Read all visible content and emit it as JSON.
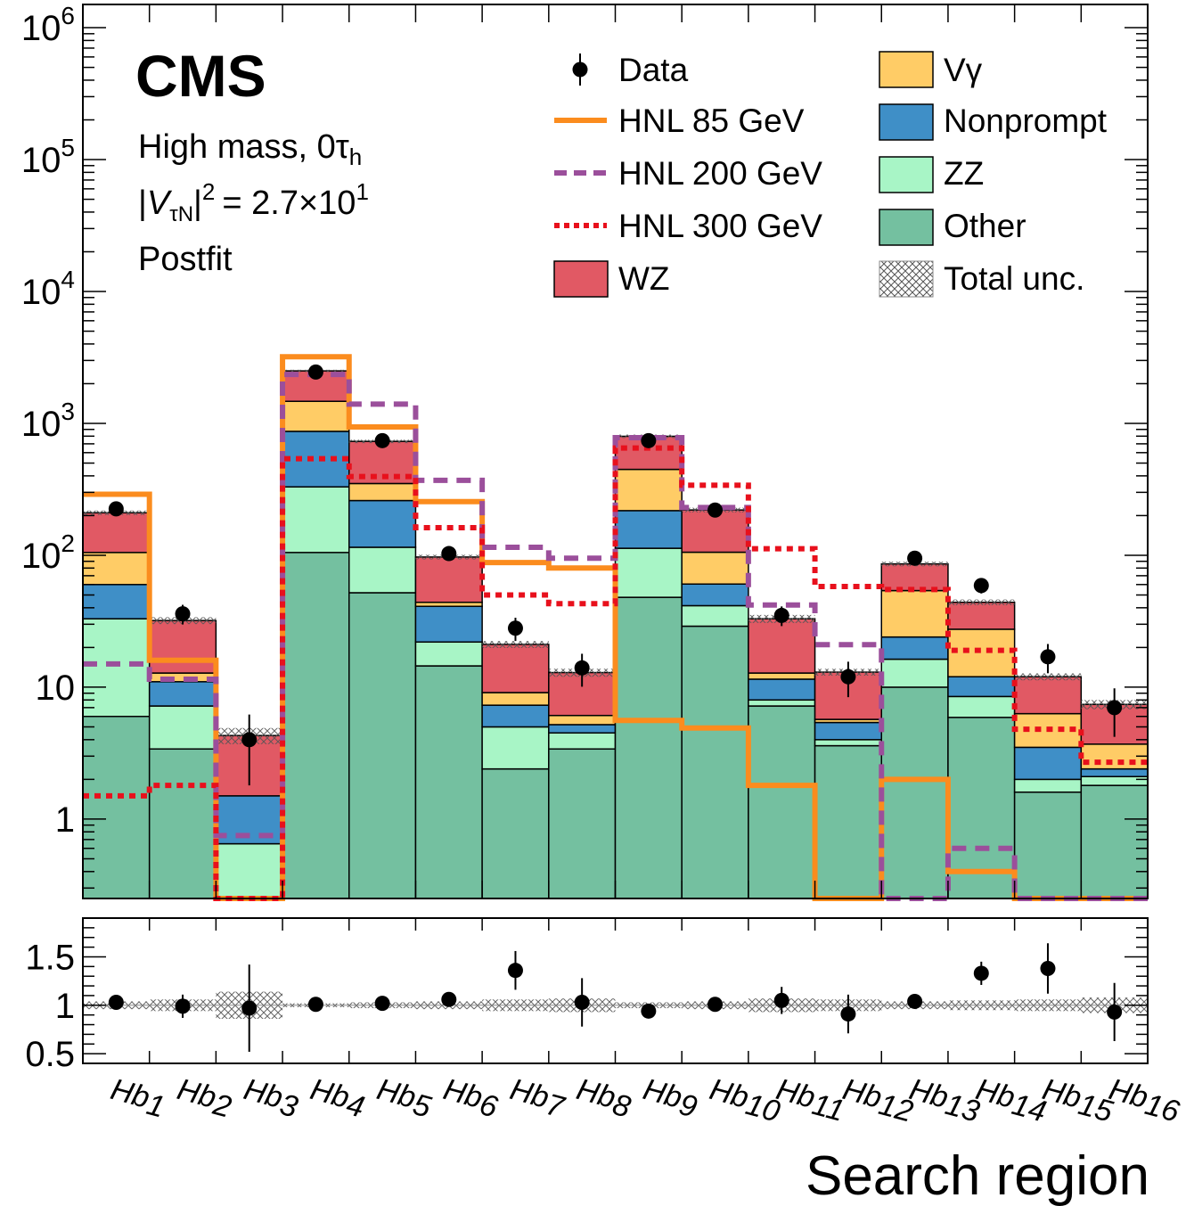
{
  "experiment": "CMS",
  "info_lines": [
    "High mass, 0τ",
    "|V",
    "|² = 2.7×10",
    "Postfit"
  ],
  "info": {
    "line1_main": "High mass, 0τ",
    "line1_sub": "h",
    "line2_v": "V",
    "line2_sub": "τN",
    "line2_rest": "= 2.7×10",
    "line2_exp": "1",
    "line2_sq": "2",
    "line3": "Postfit"
  },
  "legend": {
    "data": "Data",
    "hnl85": "HNL 85 GeV",
    "hnl200": "HNL 200 GeV",
    "hnl300": "HNL 300 GeV",
    "wz": "WZ",
    "vg": "Vγ",
    "nonprompt": "Nonprompt",
    "zz": "ZZ",
    "other": "Other",
    "unc": "Total unc."
  },
  "colors": {
    "wz": "#e15964",
    "vg": "#ffcc66",
    "nonprompt": "#3f8fc7",
    "zz": "#a8f5c6",
    "other": "#74c0a0",
    "hnl85": "#fb8c1e",
    "hnl200": "#9b4f9b",
    "hnl300": "#e8101c"
  },
  "xlabel": "Search region",
  "chart_data": {
    "type": "bar",
    "stacked": true,
    "yscale": "log",
    "ylim": [
      0.25,
      1500000
    ],
    "ratio_ylim": [
      0.4,
      1.9
    ],
    "categories": [
      "Hb1",
      "Hb2",
      "Hb3",
      "Hb4",
      "Hb5",
      "Hb6",
      "Hb7",
      "Hb8",
      "Hb9",
      "Hb10",
      "Hb11",
      "Hb12",
      "Hb13",
      "Hb14",
      "Hb15",
      "Hb16"
    ],
    "yticks": [
      "1",
      "10",
      "10²",
      "10³",
      "10⁴",
      "10⁵",
      "10⁶"
    ],
    "ratio_yticks": [
      "0.5",
      "1",
      "1.5"
    ],
    "stack_series": [
      {
        "name": "Other",
        "key": "other",
        "values": [
          6,
          3.4,
          0,
          105,
          52,
          14.5,
          2.4,
          3.4,
          48,
          29,
          7.2,
          3.6,
          10,
          5.9,
          1.6,
          1.8
        ]
      },
      {
        "name": "ZZ",
        "key": "zz",
        "values": [
          27,
          3.8,
          0.65,
          225,
          63,
          7.5,
          2.6,
          1.1,
          65,
          12.5,
          0.8,
          0.4,
          6.3,
          2.6,
          0.4,
          0.3
        ]
      },
      {
        "name": "Nonprompt",
        "key": "nonprompt",
        "values": [
          27,
          3.8,
          0.85,
          540,
          145,
          19,
          2.3,
          0.7,
          105,
          19,
          3.5,
          1.4,
          7.7,
          3.5,
          1.5,
          0.3
        ]
      },
      {
        "name": "Vγ",
        "key": "vg",
        "values": [
          45,
          1.8,
          0,
          600,
          90,
          3,
          1.8,
          0.9,
          230,
          45,
          1.3,
          0.3,
          30,
          15.5,
          2.8,
          1.3
        ]
      },
      {
        "name": "WZ",
        "key": "wz",
        "values": [
          105,
          19.2,
          2.8,
          1030,
          380,
          53,
          12,
          6.8,
          350,
          115,
          20.2,
          7.3,
          32,
          16.5,
          5.7,
          3.7
        ]
      }
    ],
    "data_points": [
      225,
      36,
      4,
      2450,
      740,
      103,
      28,
      14,
      740,
      220,
      35,
      12,
      95,
      59,
      17,
      7
    ],
    "data_err_rel": [
      0.07,
      0.17,
      0.55,
      0.02,
      0.04,
      0.1,
      0.2,
      0.28,
      0.04,
      0.07,
      0.17,
      0.3,
      0.1,
      0.13,
      0.25,
      0.4
    ],
    "hnl_series": [
      {
        "name": "HNL 85 GeV",
        "key": "hnl85",
        "values": [
          290,
          16,
          0,
          3200,
          940,
          255,
          88,
          80,
          5.6,
          4.9,
          1.8,
          0,
          2,
          0.4,
          0,
          0
        ]
      },
      {
        "name": "HNL 200 GeV",
        "key": "hnl200",
        "values": [
          15,
          11.5,
          0.75,
          2350,
          1400,
          370,
          115,
          95,
          780,
          230,
          42,
          21,
          0,
          0.6,
          0,
          0
        ]
      },
      {
        "name": "HNL 300 GeV",
        "key": "hnl300",
        "values": [
          1.5,
          1.8,
          0,
          540,
          395,
          162,
          50,
          43,
          650,
          340,
          112,
          58,
          55,
          19,
          4.8,
          2.7
        ]
      }
    ],
    "ratio": [
      1.03,
      0.99,
      0.97,
      1.01,
      1.02,
      1.06,
      1.36,
      1.03,
      0.94,
      1.01,
      1.05,
      0.91,
      1.04,
      1.33,
      1.38,
      0.93
    ],
    "ratio_err": [
      0.04,
      0.12,
      0.45,
      0.02,
      0.03,
      0.06,
      0.2,
      0.25,
      0.03,
      0.04,
      0.14,
      0.2,
      0.07,
      0.12,
      0.26,
      0.3
    ],
    "unc_band": [
      0.04,
      0.06,
      0.14,
      0.02,
      0.03,
      0.04,
      0.06,
      0.07,
      0.03,
      0.04,
      0.07,
      0.06,
      0.04,
      0.05,
      0.06,
      0.08
    ]
  }
}
